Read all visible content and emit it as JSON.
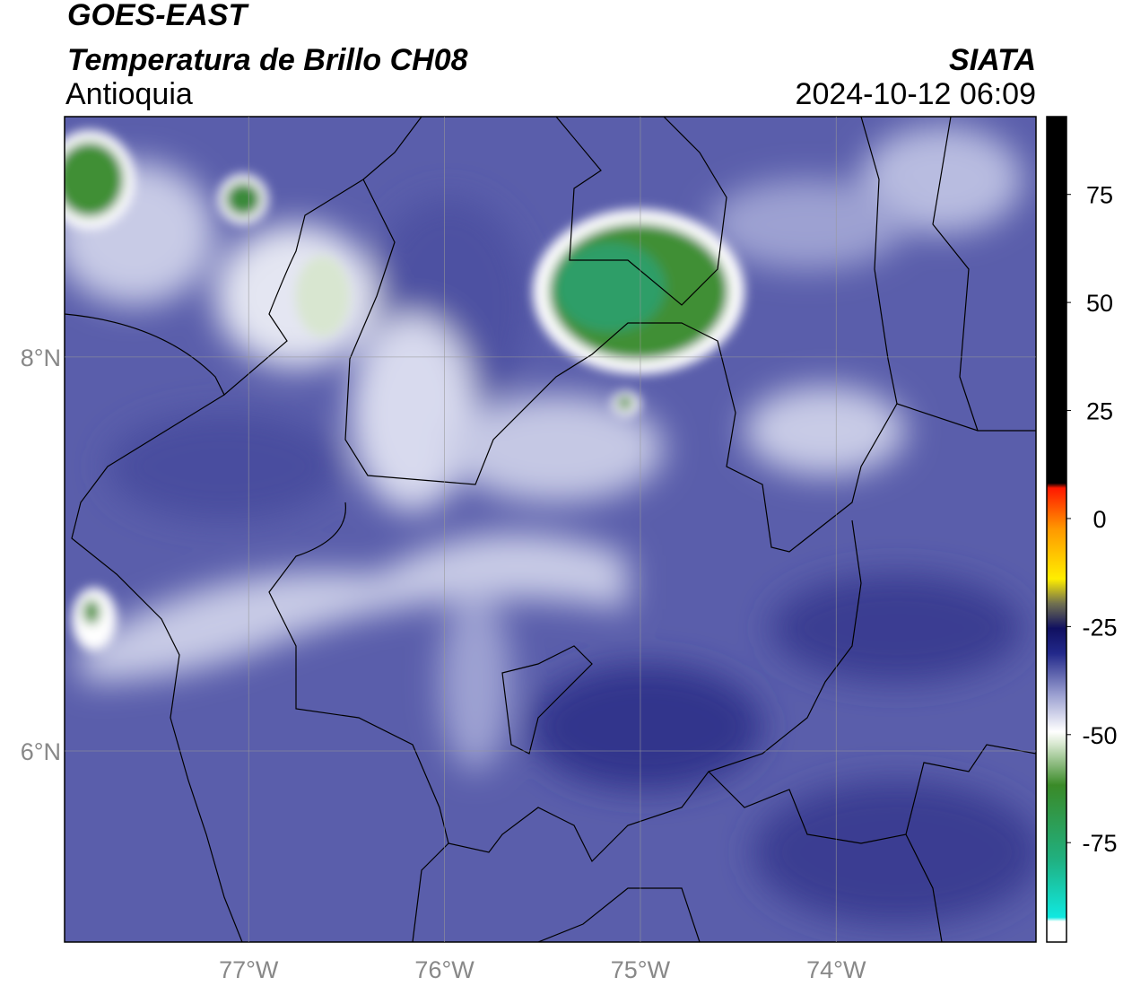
{
  "header": {
    "title": "GOES-EAST",
    "subtitle": "Temperatura de Brillo CH08",
    "region": "Antioquia",
    "source": "SIATA",
    "datetime": "2024-10-12 06:09"
  },
  "map": {
    "xlim": [
      -77.94,
      -72.98
    ],
    "ylim": [
      5.03,
      9.22
    ],
    "xticks": [
      {
        "value": -77,
        "label": "77°W"
      },
      {
        "value": -76,
        "label": "76°W"
      },
      {
        "value": -75,
        "label": "75°W"
      },
      {
        "value": -74,
        "label": "74°W"
      }
    ],
    "yticks": [
      {
        "value": 6,
        "label": "6°N"
      },
      {
        "value": 8,
        "label": "8°N"
      }
    ],
    "grid": true
  },
  "colorbar": {
    "lim": [
      -98,
      93
    ],
    "ticks": [
      -75,
      -50,
      -25,
      0,
      25,
      50,
      75
    ]
  }
}
